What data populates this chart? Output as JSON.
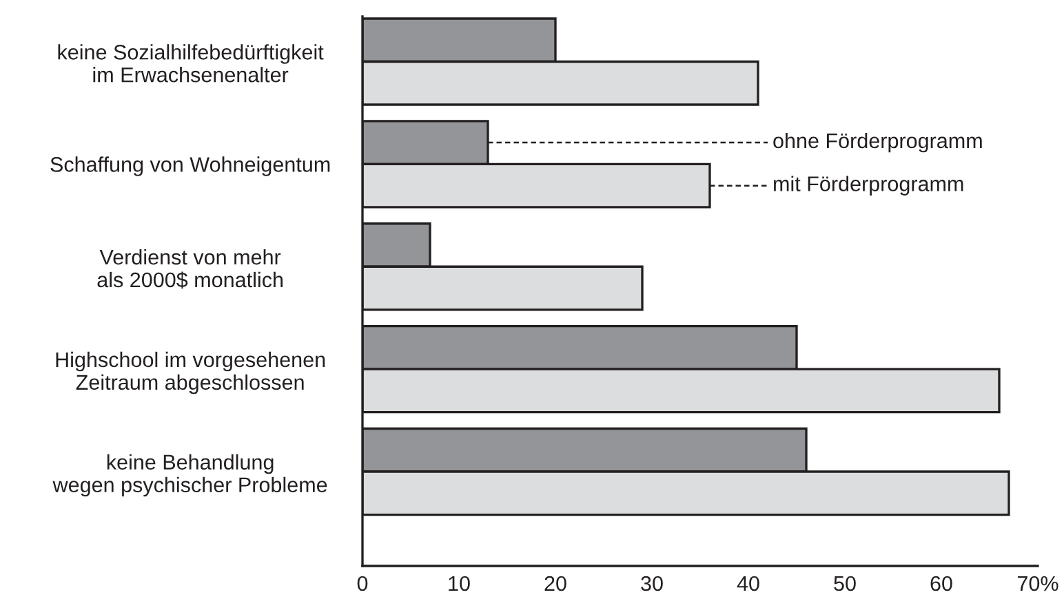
{
  "chart_data": {
    "type": "bar",
    "orientation": "horizontal",
    "categories": [
      "keine Sozialhilfebedürftigkeit\nim Erwachsenenalter",
      "Schaffung von Wohneigentum",
      "Verdienst von mehr\nals 2000$ monatlich",
      "Highschool im vorgesehenen\nZeitraum abgeschlossen",
      "keine Behandlung\nwegen psychischer Probleme"
    ],
    "series": [
      {
        "name": "ohne Förderprogramm",
        "color": "#939598",
        "values": [
          20,
          13,
          7,
          45,
          46
        ]
      },
      {
        "name": "mit Förderprogramm",
        "color": "#dcdddf",
        "values": [
          41,
          36,
          29,
          66,
          67
        ]
      }
    ],
    "xlim": [
      0,
      70
    ],
    "xticks": [
      0,
      10,
      20,
      30,
      40,
      50,
      60,
      {
        "value": 70,
        "label": "70%"
      }
    ],
    "grid": false,
    "legend": "right"
  }
}
